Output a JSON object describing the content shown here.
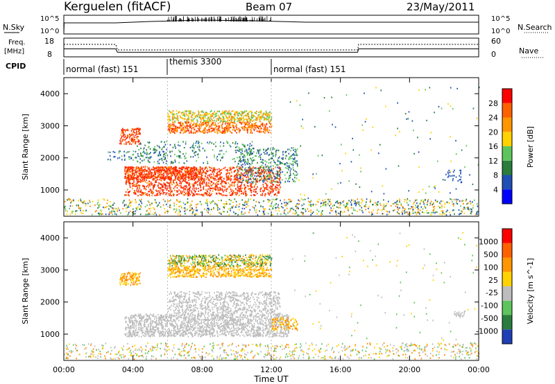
{
  "header": {
    "station": "Kerguelen (fitACF)",
    "beam": "Beam 07",
    "date": "23/May/2011"
  },
  "noise_panel": {
    "left_label": "N.Sky",
    "right_label": "N.Search",
    "left_ticks": [
      "10^5",
      "10^0"
    ],
    "right_ticks": [
      "10^5",
      "10^0"
    ]
  },
  "freq_panel": {
    "left_label_1": "Freq.",
    "left_label_2": "[MHz]",
    "left_ticks": [
      "18",
      "8"
    ],
    "right_label": "Nave",
    "right_ticks": [
      "60",
      "0"
    ]
  },
  "cpid_panel": {
    "label": "CPID",
    "modes": [
      {
        "name": "normal (fast) 151",
        "start_h": 0,
        "end_h": 6
      },
      {
        "name": "themis 3300",
        "start_h": 6,
        "end_h": 12
      },
      {
        "name": "normal (fast) 151",
        "start_h": 12,
        "end_h": 24
      }
    ]
  },
  "chart_data": [
    {
      "type": "heatmap",
      "quantity": "power",
      "ylabel": "Slant Range [km]",
      "xlabel": "Time UT",
      "x_range_h": [
        0,
        24
      ],
      "ylim": [
        180,
        4500
      ],
      "y_ticks": [
        1000,
        2000,
        3000,
        4000
      ],
      "colorbar": {
        "label": "Power [dB]",
        "ticks": [
          "28",
          "24",
          "20",
          "16",
          "12",
          "8",
          "4"
        ],
        "colors": [
          "#0000ff",
          "#1f4fb4",
          "#2a7d3d",
          "#5ec45e",
          "#ffd200",
          "#ff9600",
          "#ff6000",
          "#ff0000"
        ]
      }
    },
    {
      "type": "heatmap",
      "quantity": "velocity",
      "ylabel": "Slant Range [km]",
      "xlabel": "Time UT",
      "x_range_h": [
        0,
        24
      ],
      "ylim": [
        180,
        4500
      ],
      "y_ticks": [
        1000,
        2000,
        3000,
        4000
      ],
      "colorbar": {
        "label": "Velocity [m s^-1]",
        "ticks": [
          "1000",
          "500",
          "100",
          "25",
          "-25",
          "-100",
          "-500",
          "-1000"
        ],
        "colors": [
          "#1f3fb4",
          "#2a7d3d",
          "#5ec45e",
          "#bdbdbd",
          "#ffd200",
          "#ff9600",
          "#ff6000",
          "#ff0000"
        ]
      }
    }
  ],
  "x_axis": {
    "ticks": [
      "00:00",
      "04:00",
      "08:00",
      "12:00",
      "16:00",
      "20:00",
      "00:00"
    ],
    "label": "Time UT"
  },
  "colors": {
    "grey_scatter": "#bdbdbd",
    "red": "#ff2a00",
    "orange": "#ff8c00",
    "yellow": "#ffd200",
    "green": "#5ec45e",
    "darkgreen": "#2a7d3d",
    "blue": "#1f4fb4"
  }
}
